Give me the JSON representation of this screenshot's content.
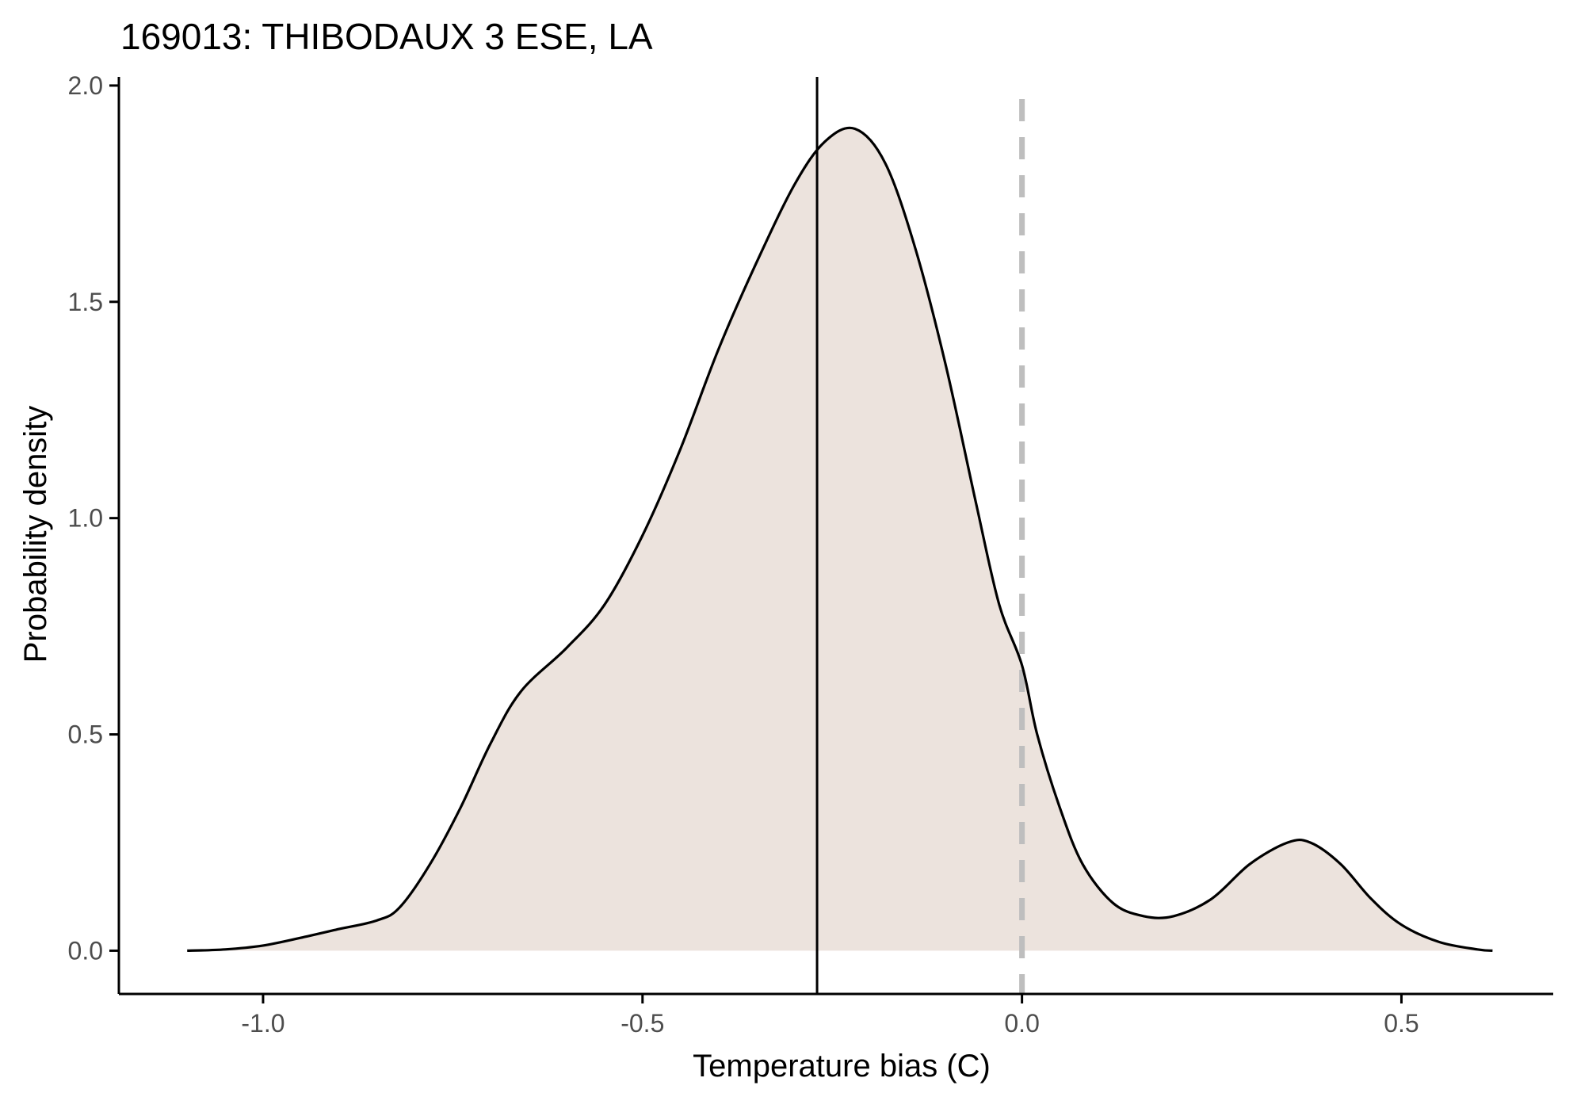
{
  "chart_data": {
    "type": "area",
    "title": "169013: THIBODAUX 3 ESE, LA",
    "xlabel": "Temperature bias (C)",
    "ylabel": "Probability density",
    "xlim": [
      -1.19,
      0.7
    ],
    "ylim": [
      -0.1,
      2.02
    ],
    "xticks": [
      -1.0,
      -0.5,
      0.0,
      0.5
    ],
    "xtick_labels": [
      "-1.0",
      "-0.5",
      "0.0",
      "0.5"
    ],
    "yticks": [
      0.0,
      0.5,
      1.0,
      1.5,
      2.0
    ],
    "ytick_labels": [
      "0.0",
      "0.5",
      "1.0",
      "1.5",
      "2.0"
    ],
    "grid": false,
    "legend": "none",
    "series": [
      {
        "x": [
          -1.1,
          -1.05,
          -1.0,
          -0.95,
          -0.9,
          -0.85,
          -0.82,
          -0.78,
          -0.74,
          -0.7,
          -0.66,
          -0.6,
          -0.55,
          -0.5,
          -0.45,
          -0.4,
          -0.35,
          -0.3,
          -0.26,
          -0.22,
          -0.18,
          -0.14,
          -0.1,
          -0.06,
          -0.03,
          0.0,
          0.02,
          0.05,
          0.08,
          0.12,
          0.16,
          0.2,
          0.25,
          0.3,
          0.35,
          0.38,
          0.42,
          0.46,
          0.5,
          0.55,
          0.6,
          0.62
        ],
        "y": [
          0.0,
          0.003,
          0.012,
          0.03,
          0.05,
          0.07,
          0.1,
          0.2,
          0.33,
          0.48,
          0.6,
          0.7,
          0.8,
          0.96,
          1.16,
          1.39,
          1.59,
          1.77,
          1.87,
          1.9,
          1.82,
          1.62,
          1.35,
          1.03,
          0.8,
          0.66,
          0.5,
          0.33,
          0.2,
          0.11,
          0.08,
          0.08,
          0.12,
          0.2,
          0.25,
          0.25,
          0.2,
          0.12,
          0.06,
          0.02,
          0.003,
          0.0
        ]
      }
    ],
    "vlines": [
      {
        "x": -0.27,
        "style": "solid",
        "color": "#000000"
      },
      {
        "x": 0.0,
        "style": "dashed",
        "color": "#bebebe"
      }
    ],
    "colors": {
      "fill": "#ece3dd",
      "line": "#000000",
      "axis": "#000000",
      "tick_label": "#4d4d4d"
    }
  }
}
